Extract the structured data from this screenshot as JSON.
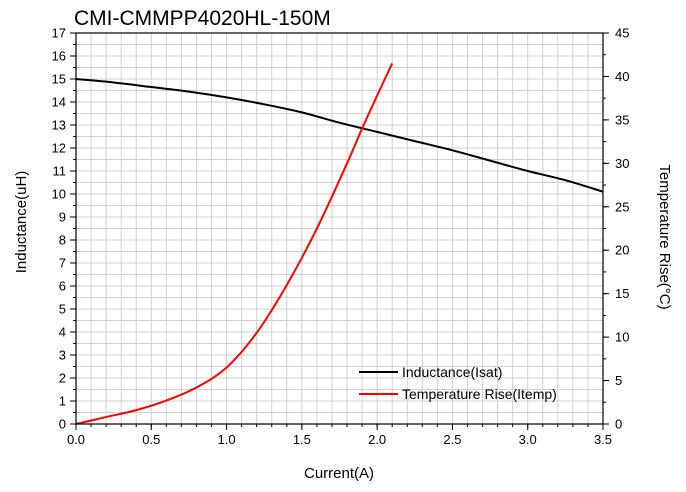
{
  "chart_data": {
    "type": "line",
    "title": "CMI-CMMPP4020HL-150M",
    "xlabel": "Current(A)",
    "ylabel": "Inductance(uH)",
    "y2label": "Temperature Rise(°C)",
    "xlim": [
      0,
      3.5
    ],
    "ylim": [
      0,
      17
    ],
    "y2lim": [
      0,
      45
    ],
    "xticks": [
      "0.0",
      "0.5",
      "1.0",
      "1.5",
      "2.0",
      "2.5",
      "3.0",
      "3.5"
    ],
    "yticks": [
      "0",
      "1",
      "2",
      "3",
      "4",
      "5",
      "6",
      "7",
      "8",
      "9",
      "10",
      "11",
      "12",
      "13",
      "14",
      "15",
      "16",
      "17"
    ],
    "y2ticks": [
      "0",
      "5",
      "10",
      "15",
      "20",
      "25",
      "30",
      "35",
      "40",
      "45"
    ],
    "grid": true,
    "legend_position": "bottom-right",
    "series": [
      {
        "name": "Inductance(Isat)",
        "axis": "left",
        "color": "#000000",
        "x": [
          0.0,
          0.25,
          0.5,
          0.75,
          1.0,
          1.25,
          1.5,
          1.75,
          2.0,
          2.25,
          2.5,
          2.75,
          3.0,
          3.25,
          3.5
        ],
        "y": [
          15.0,
          14.85,
          14.65,
          14.45,
          14.2,
          13.9,
          13.55,
          13.1,
          12.7,
          12.3,
          11.9,
          11.45,
          11.0,
          10.6,
          10.1
        ]
      },
      {
        "name": "Temperature Rise(Itemp)",
        "axis": "right",
        "color": "#ff0000",
        "x": [
          0.0,
          0.2,
          0.4,
          0.6,
          0.8,
          1.0,
          1.2,
          1.4,
          1.6,
          1.8,
          1.9,
          2.0,
          2.1
        ],
        "y": [
          0.0,
          0.8,
          1.6,
          2.7,
          4.2,
          6.5,
          10.5,
          16.0,
          22.5,
          30.0,
          34.0,
          37.8,
          41.5
        ]
      }
    ]
  }
}
